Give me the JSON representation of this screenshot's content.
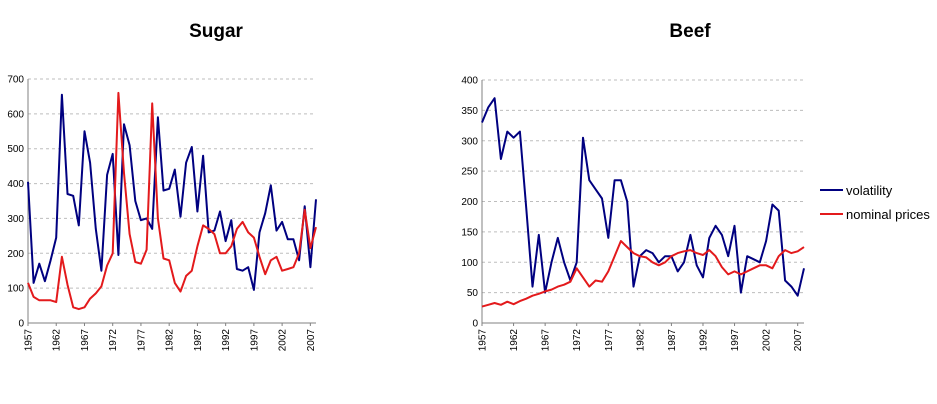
{
  "colors": {
    "volatility": "#000080",
    "nominal_prices": "#e31a1c"
  },
  "legend": {
    "items": [
      {
        "key": "volatility",
        "label": "volatility"
      },
      {
        "key": "nominal_prices",
        "label": "nominal prices"
      }
    ],
    "placement": "right"
  },
  "chart_data": [
    {
      "type": "line",
      "title": "Sugar",
      "xlabel": "",
      "ylabel": "",
      "ylim": [
        0,
        700
      ],
      "yticks": [
        0,
        100,
        200,
        300,
        400,
        500,
        600,
        700
      ],
      "x_tick_labels": [
        "1957",
        "1962",
        "1967",
        "1972",
        "1977",
        "1982",
        "1987",
        "1992",
        "1997",
        "2002",
        "2007"
      ],
      "x": [
        1957,
        1958,
        1959,
        1960,
        1961,
        1962,
        1963,
        1964,
        1965,
        1966,
        1967,
        1968,
        1969,
        1970,
        1971,
        1972,
        1973,
        1974,
        1975,
        1976,
        1977,
        1978,
        1979,
        1980,
        1981,
        1982,
        1983,
        1984,
        1985,
        1986,
        1987,
        1988,
        1989,
        1990,
        1991,
        1992,
        1993,
        1994,
        1995,
        1996,
        1997,
        1998,
        1999,
        2000,
        2001,
        2002,
        2003,
        2004,
        2005,
        2006,
        2007,
        2008
      ],
      "grid": true,
      "series": [
        {
          "name": "volatility",
          "color_key": "volatility",
          "values": [
            405,
            115,
            170,
            120,
            180,
            245,
            655,
            370,
            365,
            280,
            550,
            460,
            270,
            150,
            425,
            485,
            195,
            570,
            510,
            350,
            295,
            300,
            270,
            590,
            380,
            385,
            440,
            305,
            460,
            505,
            320,
            480,
            260,
            265,
            320,
            235,
            295,
            155,
            150,
            160,
            95,
            260,
            315,
            395,
            265,
            290,
            240,
            240,
            180,
            335,
            160,
            355
          ]
        },
        {
          "name": "nominal prices",
          "color_key": "nominal_prices",
          "values": [
            115,
            75,
            65,
            65,
            65,
            60,
            190,
            110,
            45,
            40,
            45,
            70,
            85,
            105,
            165,
            200,
            660,
            430,
            255,
            175,
            170,
            210,
            630,
            300,
            185,
            180,
            115,
            90,
            135,
            150,
            220,
            280,
            270,
            255,
            200,
            200,
            220,
            270,
            290,
            260,
            245,
            190,
            140,
            180,
            190,
            150,
            155,
            160,
            200,
            325,
            215,
            275
          ]
        }
      ]
    },
    {
      "type": "line",
      "title": "Beef",
      "xlabel": "",
      "ylabel": "",
      "ylim": [
        0,
        400
      ],
      "yticks": [
        0,
        50,
        100,
        150,
        200,
        250,
        300,
        350,
        400
      ],
      "x_tick_labels": [
        "1957",
        "1962",
        "1967",
        "1972",
        "1977",
        "1982",
        "1987",
        "1992",
        "1997",
        "2002",
        "2007"
      ],
      "x": [
        1957,
        1958,
        1959,
        1960,
        1961,
        1962,
        1963,
        1964,
        1965,
        1966,
        1967,
        1968,
        1969,
        1970,
        1971,
        1972,
        1973,
        1974,
        1975,
        1976,
        1977,
        1978,
        1979,
        1980,
        1981,
        1982,
        1983,
        1984,
        1985,
        1986,
        1987,
        1988,
        1989,
        1990,
        1991,
        1992,
        1993,
        1994,
        1995,
        1996,
        1997,
        1998,
        1999,
        2000,
        2001,
        2002,
        2003,
        2004,
        2005,
        2006,
        2007,
        2008
      ],
      "grid": true,
      "series": [
        {
          "name": "volatility",
          "color_key": "volatility",
          "values": [
            330,
            355,
            370,
            270,
            315,
            305,
            315,
            190,
            60,
            145,
            50,
            100,
            140,
            100,
            70,
            100,
            305,
            235,
            220,
            205,
            140,
            235,
            235,
            200,
            60,
            110,
            120,
            115,
            100,
            110,
            110,
            85,
            100,
            145,
            95,
            75,
            140,
            160,
            145,
            110,
            160,
            50,
            110,
            105,
            100,
            135,
            195,
            185,
            70,
            60,
            45,
            90
          ]
        },
        {
          "name": "nominal prices",
          "color_key": "nominal_prices",
          "values": [
            27,
            30,
            33,
            30,
            35,
            31,
            36,
            40,
            45,
            48,
            52,
            55,
            60,
            63,
            68,
            90,
            75,
            60,
            70,
            68,
            85,
            110,
            135,
            125,
            115,
            110,
            108,
            100,
            95,
            100,
            110,
            115,
            118,
            120,
            115,
            112,
            120,
            110,
            92,
            80,
            85,
            80,
            85,
            90,
            95,
            95,
            90,
            110,
            120,
            115,
            118,
            125
          ]
        }
      ]
    }
  ]
}
